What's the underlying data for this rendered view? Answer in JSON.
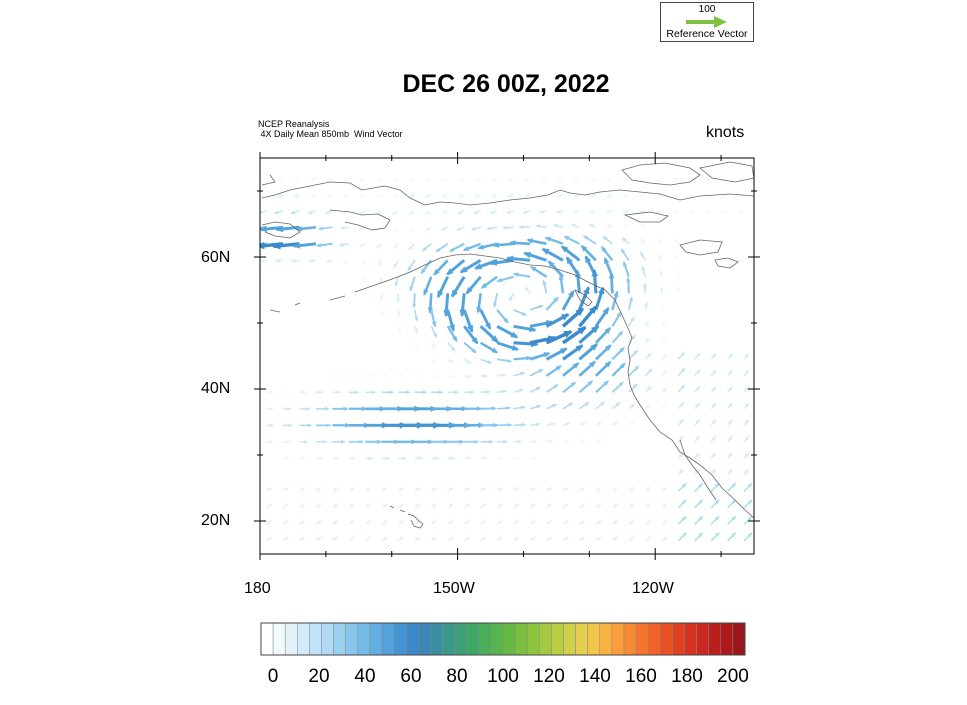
{
  "reference_vector": {
    "value": "100",
    "label": "Reference Vector",
    "color": "#7dc242"
  },
  "title": "DEC 26 00Z, 2022",
  "source": {
    "line1": "NCEP Reanalysis",
    "line2": " 4X Daily Mean 850mb  Wind Vector"
  },
  "units": "knots",
  "map": {
    "lat_labels": [
      "60N",
      "40N",
      "20N"
    ],
    "lon_labels": [
      "180",
      "150W",
      "120W"
    ],
    "lat_range": [
      15,
      75
    ],
    "lon_range": [
      -180,
      -105
    ],
    "projection": "equidistant cylindrical"
  },
  "colorbar": {
    "labels": [
      "0",
      "20",
      "40",
      "60",
      "80",
      "100",
      "120",
      "140",
      "160",
      "180",
      "200"
    ],
    "min": 0,
    "max": 200,
    "step": 5,
    "colors": [
      "#ffffff",
      "#f2f9fd",
      "#e3f3fb",
      "#d2ecf9",
      "#c0e4f6",
      "#aedbf3",
      "#9bd1f0",
      "#88c6ec",
      "#75bbe7",
      "#63afe2",
      "#52a2dc",
      "#4595d4",
      "#3b8acb",
      "#3a87b8",
      "#3a8fa2",
      "#3a978c",
      "#3b9f78",
      "#3fa766",
      "#48ae57",
      "#55b44b",
      "#65ba43",
      "#79c03f",
      "#8ec53f",
      "#a4ca41",
      "#bace44",
      "#d0d14a",
      "#e3cf4d",
      "#f1c44a",
      "#f7b242",
      "#f99e3a",
      "#f88a33",
      "#f5752d",
      "#f06228",
      "#e95124",
      "#e04121",
      "#d5331f",
      "#c9281e",
      "#bb1f1d",
      "#ab191c",
      "#9a161b"
    ]
  },
  "wind_vectors": {
    "lat_start": 73,
    "lon_start": -179,
    "spacing_deg": 2.5,
    "note_units": "knots",
    "grid_rows_from_north": [
      {
        "lat": 73,
        "type": "uniform",
        "u": -8,
        "v": -6
      },
      {
        "lat": 70,
        "type": "uniform",
        "u": -10,
        "v": -5
      },
      {
        "lat": 67,
        "type": "uniform",
        "u": 10,
        "v": -3
      },
      {
        "lat": 65,
        "type": "jet_west",
        "u_peak": -60,
        "v": -4
      },
      {
        "lat": 62,
        "type": "jet_west",
        "u_peak": -75,
        "v": -6
      },
      {
        "lat": 60,
        "type": "cyclone_top",
        "u_peak": -50
      },
      {
        "lat": 55,
        "type": "cyclone_center"
      },
      {
        "lat": 50,
        "type": "jet_east",
        "u_peak": 55,
        "v": 10
      },
      {
        "lat": 45,
        "type": "jet_east",
        "u_peak": 50,
        "v": 15
      },
      {
        "lat": 40,
        "type": "jet_east",
        "u_peak": 55,
        "v": 25
      },
      {
        "lat": 35,
        "type": "jet_east",
        "u_peak": 75,
        "v": 10
      },
      {
        "lat": 30,
        "type": "jet_east",
        "u_peak": 55,
        "v": 8
      },
      {
        "lat": 25,
        "type": "uniform",
        "u": 15,
        "v": 10
      },
      {
        "lat": 20,
        "type": "uniform",
        "u": -5,
        "v": 5
      }
    ]
  }
}
